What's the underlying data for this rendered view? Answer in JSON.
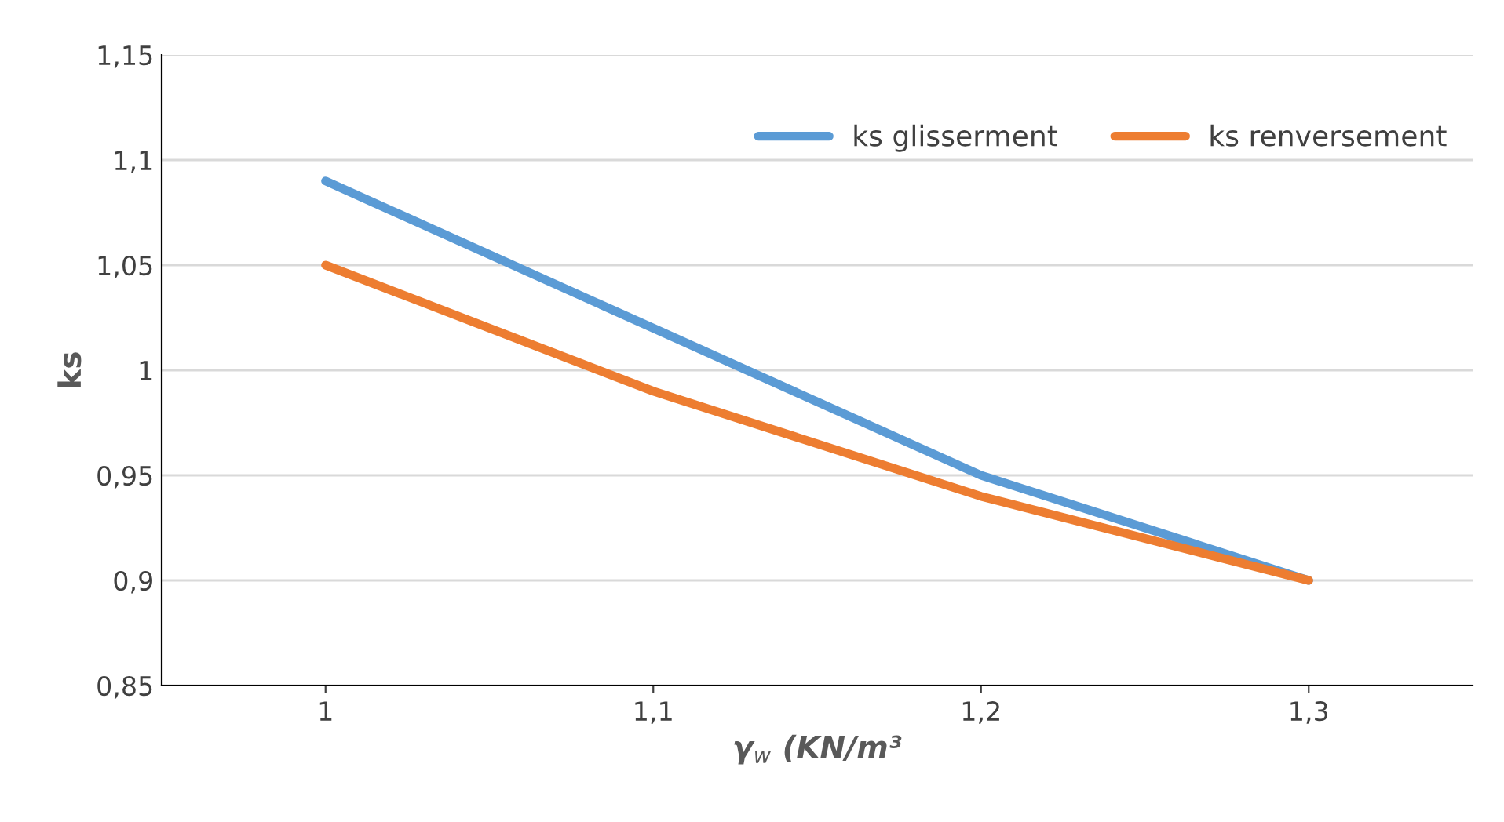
{
  "chart_data": {
    "type": "line",
    "xlabel": "γ$_{w}$ (KN/m³",
    "ylabel": "ks",
    "categories": [
      "1",
      "1,1",
      "1,2",
      "1,3"
    ],
    "series": [
      {
        "name": "ks glisserment",
        "color": "#5b9bd5",
        "values": [
          1.09,
          1.02,
          0.95,
          0.9
        ]
      },
      {
        "name": "ks renversement",
        "color": "#ed7d31",
        "values": [
          1.05,
          0.99,
          0.94,
          0.9
        ]
      }
    ],
    "ylim": [
      0.85,
      1.15
    ],
    "yticks": [
      {
        "value": 0.85,
        "label": "0,85"
      },
      {
        "value": 0.9,
        "label": "0,9"
      },
      {
        "value": 0.95,
        "label": "0,95"
      },
      {
        "value": 1,
        "label": "1"
      },
      {
        "value": 1.05,
        "label": "1,05"
      },
      {
        "value": 1.1,
        "label": "1,1"
      },
      {
        "value": 1.15,
        "label": "1,15"
      }
    ],
    "grid": "y",
    "legend": "top right",
    "marker": "none",
    "line_style": "solid"
  }
}
